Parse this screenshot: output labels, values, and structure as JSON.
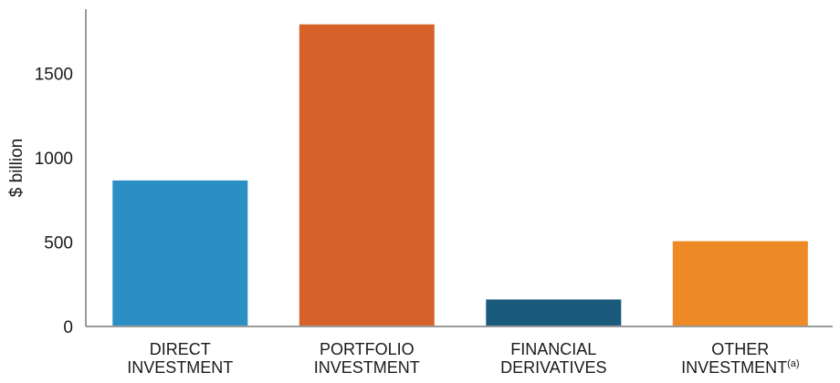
{
  "chart_data": {
    "type": "bar",
    "categories": [
      [
        "DIRECT",
        "INVESTMENT"
      ],
      [
        "PORTFOLIO",
        "INVESTMENT"
      ],
      [
        "FINANCIAL",
        "DERIVATIVES"
      ],
      [
        "OTHER",
        "INVESTMENT"
      ]
    ],
    "category_superscripts": [
      "",
      "",
      "",
      "(a)"
    ],
    "values": [
      865,
      1790,
      160,
      505
    ],
    "colors": [
      "#2b8fc6",
      "#d6622a",
      "#1a5a7c",
      "#ee8a25"
    ],
    "ylabel": "$ billion",
    "yticks": [
      0,
      500,
      1000,
      1500
    ],
    "ylim": [
      0,
      1880
    ],
    "grid": false,
    "axis_color": "#9a9a9a"
  }
}
